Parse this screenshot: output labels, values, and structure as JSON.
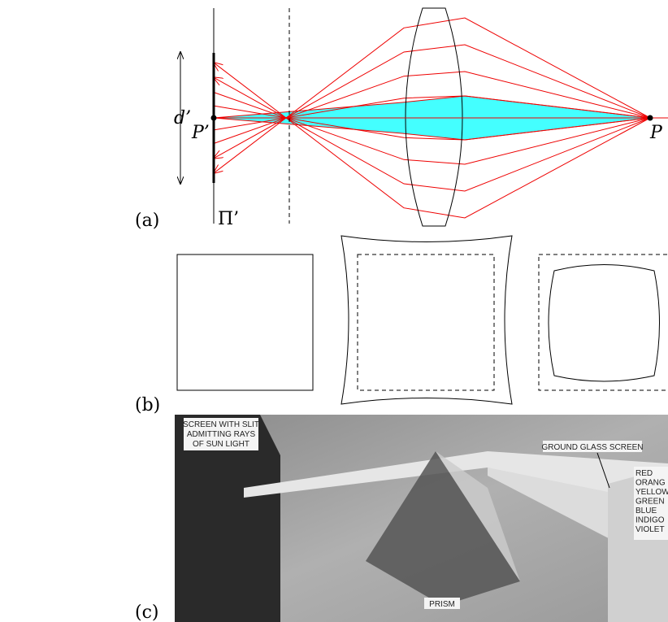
{
  "labels": {
    "a": "(a)",
    "b": "(b)",
    "c": "(c)"
  },
  "diagram": {
    "d": "d’",
    "p_prime": "P’",
    "p": "P",
    "plane": "Π’"
  },
  "photo": {
    "slit": [
      "SCREEN WITH SLIT",
      "ADMITTING RAYS",
      "OF SUN LIGHT"
    ],
    "screen": "GROUND GLASS SCREEN",
    "colors": [
      "RED",
      "ORANG",
      "YELLOW",
      "GREEN",
      "BLUE",
      "INDIGO",
      "VIOLET"
    ],
    "prism": "PRISM"
  }
}
